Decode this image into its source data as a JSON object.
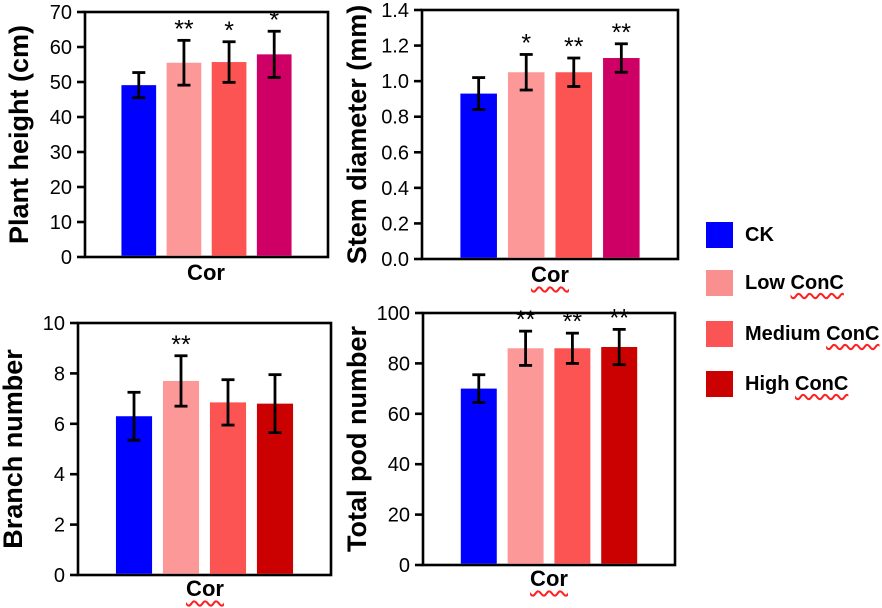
{
  "figure": {
    "background": "#ffffff",
    "axis_color": "#000000",
    "squiggle_color": "#ff1f1f"
  },
  "palette": {
    "blue": "#0000ff",
    "pink": "#fc9898",
    "salmon": "#fc5353",
    "crimson": "#ce0066",
    "dark_red": "#cb0000"
  },
  "chart_data": [
    {
      "id": "plant-height",
      "type": "bar",
      "title": "",
      "ylabel": "Plant height (cm)",
      "xlabel": "Cor",
      "xlabel_misspell_underline": false,
      "ylim": [
        0,
        70
      ],
      "ytick_step": 10,
      "ytick_decimals": 0,
      "grid": false,
      "categories": [
        "CK",
        "Low ConC",
        "Medium ConC",
        "High ConC"
      ],
      "values": [
        49.1,
        55.5,
        55.7,
        57.9
      ],
      "errors": [
        3.6,
        6.4,
        5.8,
        6.6
      ],
      "significance": [
        "",
        "**",
        "*",
        "*"
      ],
      "bar_colors": [
        "#0000ff",
        "#fc9898",
        "#fc5353",
        "#ce0066"
      ]
    },
    {
      "id": "stem-diameter",
      "type": "bar",
      "title": "",
      "ylabel": "Stem diameter (mm)",
      "xlabel": "Cor",
      "xlabel_misspell_underline": true,
      "ylim": [
        0,
        1.4
      ],
      "ytick_step": 0.2,
      "ytick_decimals": 1,
      "grid": false,
      "categories": [
        "CK",
        "Low ConC",
        "Medium ConC",
        "High ConC"
      ],
      "values": [
        0.93,
        1.05,
        1.05,
        1.13
      ],
      "errors": [
        0.09,
        0.1,
        0.08,
        0.08
      ],
      "significance": [
        "",
        "*",
        "**",
        "**"
      ],
      "bar_colors": [
        "#0000ff",
        "#fc9898",
        "#fc5353",
        "#ce0066"
      ]
    },
    {
      "id": "branch-number",
      "type": "bar",
      "title": "",
      "ylabel": "Branch number",
      "xlabel": "Cor",
      "xlabel_misspell_underline": true,
      "ylim": [
        0,
        10
      ],
      "ytick_step": 2,
      "ytick_decimals": 0,
      "grid": false,
      "categories": [
        "CK",
        "Low ConC",
        "Medium ConC",
        "High ConC"
      ],
      "values": [
        6.3,
        7.7,
        6.85,
        6.8
      ],
      "errors": [
        0.95,
        1.0,
        0.9,
        1.15
      ],
      "significance": [
        "",
        "**",
        "",
        ""
      ],
      "bar_colors": [
        "#0000ff",
        "#fc9898",
        "#fc5353",
        "#cb0000"
      ]
    },
    {
      "id": "total-pod-number",
      "type": "bar",
      "title": "",
      "ylabel": "Total pod number",
      "xlabel": "Cor",
      "xlabel_misspell_underline": true,
      "ylim": [
        0,
        100
      ],
      "ytick_step": 20,
      "ytick_decimals": 0,
      "grid": false,
      "categories": [
        "CK",
        "Low ConC",
        "Medium ConC",
        "High ConC"
      ],
      "values": [
        70,
        86,
        86,
        86.5
      ],
      "errors": [
        5.5,
        6.8,
        6.0,
        7.0
      ],
      "significance": [
        "",
        "**",
        "**",
        "**"
      ],
      "bar_colors": [
        "#0000ff",
        "#fc9898",
        "#fc5353",
        "#cb0000"
      ]
    }
  ],
  "legend": {
    "items": [
      {
        "label": "CK",
        "color": "#0000ff",
        "misspell_underline": false
      },
      {
        "label": "Low ConC",
        "color": "#fa8f8f",
        "misspell_underline": true
      },
      {
        "label": "Medium ConC",
        "color": "#fb5454",
        "misspell_underline": true
      },
      {
        "label": "High ConC",
        "color": "#cb0000",
        "misspell_underline": true
      }
    ]
  }
}
